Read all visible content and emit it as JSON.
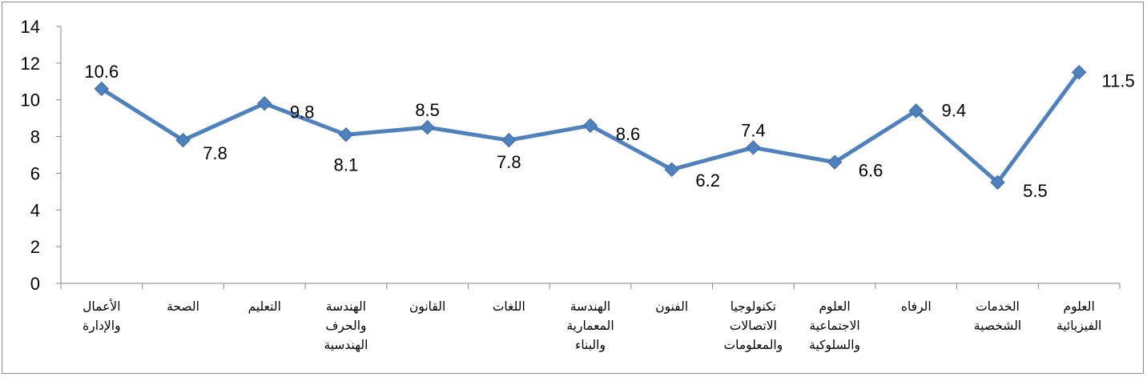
{
  "chart_data": {
    "type": "line",
    "title": "",
    "xlabel": "",
    "ylabel": "",
    "ylim": [
      0,
      14
    ],
    "yticks": [
      0,
      2,
      4,
      6,
      8,
      10,
      12,
      14
    ],
    "grid": false,
    "legend": "none",
    "line_color": "#4f81bd",
    "categories": [
      [
        "الأعمال",
        "والإدارة"
      ],
      [
        "الصحة"
      ],
      [
        "التعليم"
      ],
      [
        "الهندسة",
        "والحرف",
        "الهندسية"
      ],
      [
        "القانون"
      ],
      [
        "اللغات"
      ],
      [
        "الهندسة",
        "المعمارية",
        "والبناء"
      ],
      [
        "الفنون"
      ],
      [
        "تكنولوجيا",
        "الاتصالات",
        "والمعلومات"
      ],
      [
        "العلوم",
        "الاجتماعية",
        "والسلوكية"
      ],
      [
        "الرفاه"
      ],
      [
        "الخدمات",
        "الشخصية"
      ],
      [
        "العلوم",
        "الفيزيائية"
      ]
    ],
    "series": [
      {
        "values": [
          10.6,
          7.8,
          9.8,
          8.1,
          8.5,
          7.8,
          8.6,
          6.2,
          7.4,
          6.6,
          9.4,
          5.5,
          11.5
        ],
        "labels": [
          "10.6",
          "7.8",
          "9.8",
          "8.1",
          "8.5",
          "7.8",
          "8.6",
          "6.2",
          "7.4",
          "6.6",
          "9.4",
          "5.5",
          "11.5"
        ]
      }
    ]
  }
}
